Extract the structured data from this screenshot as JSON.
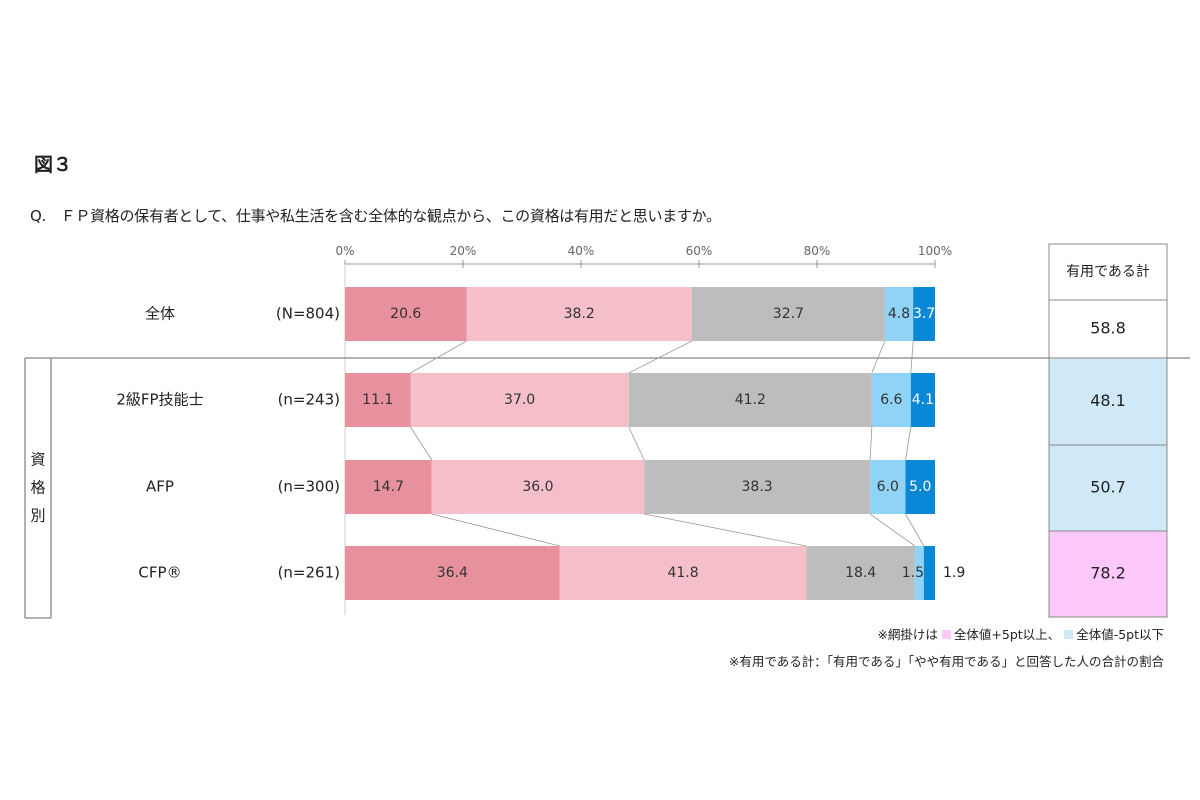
{
  "figure_label": "図３",
  "question": "Q.　ＦＰ資格の保有者として、仕事や私生活を含む全体的な観点から、この資格は有用だと思いますか。",
  "group_label": "資格別",
  "summary_header": "有用である計",
  "notes": {
    "shading_prefix": "※網掛けは",
    "shading_high": "全体値+5pt以上、",
    "shading_low": "全体値-5pt以下",
    "definition": "※有用である計：「有用である」「やや有用である」と回答した人の合計の割合"
  },
  "colors": {
    "useful": "#e8919e",
    "somewhat_useful": "#f4bfc8",
    "neither": "#bdbdbd",
    "not_very_useful": "#8fd3f6",
    "not_useful": "#0a88d6",
    "highlight_high": "#fcc8fa",
    "highlight_low": "#cfe9f8"
  },
  "chart_data": {
    "type": "bar",
    "orientation": "horizontal",
    "stacked": true,
    "percent_axis": true,
    "xlim": [
      0,
      100
    ],
    "xticks": [
      "0%",
      "20%",
      "40%",
      "60%",
      "80%",
      "100%"
    ],
    "categories": [
      "全体",
      "2級FP技能士",
      "AFP",
      "CFP®"
    ],
    "sample_sizes": [
      "(N=804)",
      "(n=243)",
      "(n=300)",
      "(n=261)"
    ],
    "series": [
      {
        "values": [
          20.6,
          11.1,
          14.7,
          36.4
        ]
      },
      {
        "values": [
          38.2,
          37.0,
          36.0,
          41.8
        ]
      },
      {
        "values": [
          32.7,
          41.2,
          38.3,
          18.4
        ]
      },
      {
        "values": [
          4.8,
          6.6,
          6.0,
          1.5
        ]
      },
      {
        "values": [
          3.7,
          4.1,
          5.0,
          1.9
        ]
      }
    ],
    "data_labels": [
      [
        "20.6",
        "38.2",
        "32.7",
        "4.8",
        "3.7"
      ],
      [
        "11.1",
        "37.0",
        "41.2",
        "6.6",
        "4.1"
      ],
      [
        "14.7",
        "36.0",
        "38.3",
        "6.0",
        "5.0"
      ],
      [
        "36.4",
        "41.8",
        "18.4",
        "1.5",
        "1.9"
      ]
    ],
    "summary_values": [
      "58.8",
      "48.1",
      "50.7",
      "78.2"
    ],
    "summary_highlight": [
      "none",
      "low",
      "low",
      "high"
    ]
  }
}
